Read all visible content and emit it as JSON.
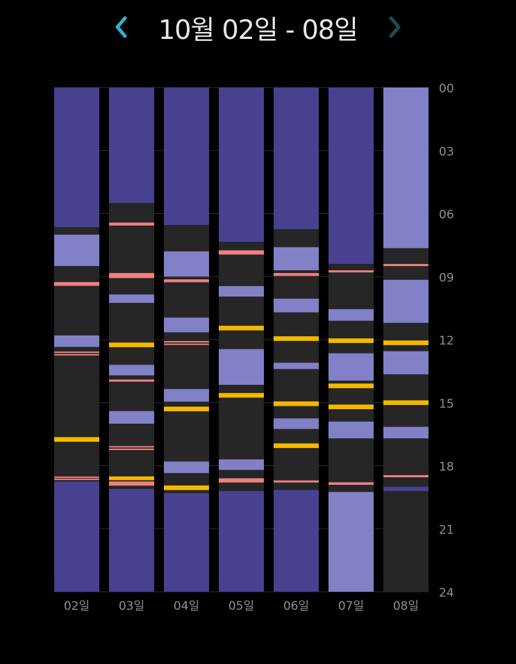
{
  "header": {
    "title": "10월 02일 - 08일",
    "prev_icon": "chevron-left-icon",
    "next_icon": "chevron-right-icon",
    "prev_color": "#2bb3d1",
    "next_color": "#1f4a55"
  },
  "chart_data": {
    "type": "bar",
    "orientation": "vertical-timeline",
    "title": "10월 02일 - 08일",
    "xlabel": "",
    "ylabel": "",
    "ylim": [
      0,
      24
    ],
    "y_ticks": [
      "00",
      "03",
      "06",
      "09",
      "12",
      "15",
      "18",
      "21",
      "24"
    ],
    "categories": [
      "02일",
      "03일",
      "04일",
      "05일",
      "06일",
      "07일",
      "08일"
    ],
    "grid": true,
    "colors": {
      "dark_blue": "#474190",
      "light_blue": "#8280c6",
      "dark_gray": "#262626",
      "pink": "#f08080",
      "yellow": "#f5b800",
      "grid": "#2c2c2c",
      "tick": "#8f8f8f"
    },
    "days": [
      {
        "label": "02일",
        "segments": [
          {
            "start": 0,
            "end": 6.65,
            "type": "dark_blue"
          },
          {
            "start": 6.65,
            "end": 7.0,
            "type": "dark_gray"
          },
          {
            "start": 7.0,
            "end": 8.5,
            "type": "light_blue"
          },
          {
            "start": 8.5,
            "end": 12.35,
            "type": "dark_gray"
          },
          {
            "start": 11.8,
            "end": 12.35,
            "type": "light_blue"
          },
          {
            "start": 12.35,
            "end": 18.75,
            "type": "dark_gray"
          },
          {
            "start": 18.75,
            "end": 24,
            "type": "dark_blue"
          }
        ],
        "marks": [
          {
            "time": 9.35,
            "type": "pink",
            "size": 0.18
          },
          {
            "time": 12.6,
            "type": "pink",
            "size": 0.05
          },
          {
            "time": 12.72,
            "type": "pink",
            "size": 0.05
          },
          {
            "time": 16.75,
            "type": "yellow",
            "size": 0.22
          },
          {
            "time": 18.55,
            "type": "pink",
            "size": 0.05
          },
          {
            "time": 18.65,
            "type": "pink",
            "size": 0.05
          }
        ]
      },
      {
        "label": "03일",
        "segments": [
          {
            "start": 0,
            "end": 5.5,
            "type": "dark_blue"
          },
          {
            "start": 5.5,
            "end": 19.1,
            "type": "dark_gray"
          },
          {
            "start": 9.85,
            "end": 10.25,
            "type": "light_blue"
          },
          {
            "start": 13.2,
            "end": 13.7,
            "type": "light_blue"
          },
          {
            "start": 15.4,
            "end": 16.0,
            "type": "light_blue"
          },
          {
            "start": 19.1,
            "end": 24,
            "type": "dark_blue"
          }
        ],
        "marks": [
          {
            "time": 6.5,
            "type": "pink",
            "size": 0.14
          },
          {
            "time": 8.95,
            "type": "pink",
            "size": 0.24
          },
          {
            "time": 12.25,
            "type": "yellow",
            "size": 0.22
          },
          {
            "time": 13.95,
            "type": "pink",
            "size": 0.1
          },
          {
            "time": 17.1,
            "type": "pink",
            "size": 0.05
          },
          {
            "time": 17.22,
            "type": "pink",
            "size": 0.05
          },
          {
            "time": 18.6,
            "type": "yellow",
            "size": 0.18
          },
          {
            "time": 18.85,
            "type": "pink",
            "size": 0.2
          }
        ]
      },
      {
        "label": "04일",
        "segments": [
          {
            "start": 0,
            "end": 6.55,
            "type": "dark_blue"
          },
          {
            "start": 6.55,
            "end": 19.3,
            "type": "dark_gray"
          },
          {
            "start": 7.8,
            "end": 9.0,
            "type": "light_blue"
          },
          {
            "start": 10.95,
            "end": 11.65,
            "type": "light_blue"
          },
          {
            "start": 14.35,
            "end": 14.95,
            "type": "light_blue"
          },
          {
            "start": 17.8,
            "end": 18.35,
            "type": "light_blue"
          },
          {
            "start": 19.3,
            "end": 24,
            "type": "dark_blue"
          }
        ],
        "marks": [
          {
            "time": 9.2,
            "type": "pink",
            "size": 0.14
          },
          {
            "time": 12.1,
            "type": "pink",
            "size": 0.05
          },
          {
            "time": 12.22,
            "type": "pink",
            "size": 0.05
          },
          {
            "time": 15.3,
            "type": "yellow",
            "size": 0.22
          },
          {
            "time": 19.05,
            "type": "yellow",
            "size": 0.22
          }
        ]
      },
      {
        "label": "05일",
        "segments": [
          {
            "start": 0,
            "end": 7.35,
            "type": "dark_blue"
          },
          {
            "start": 7.35,
            "end": 19.2,
            "type": "dark_gray"
          },
          {
            "start": 9.45,
            "end": 9.95,
            "type": "light_blue"
          },
          {
            "start": 12.45,
            "end": 14.15,
            "type": "light_blue"
          },
          {
            "start": 17.7,
            "end": 18.2,
            "type": "light_blue"
          },
          {
            "start": 19.2,
            "end": 24,
            "type": "dark_blue"
          }
        ],
        "marks": [
          {
            "time": 7.85,
            "type": "pink",
            "size": 0.2
          },
          {
            "time": 11.45,
            "type": "yellow",
            "size": 0.22
          },
          {
            "time": 14.65,
            "type": "yellow",
            "size": 0.22
          },
          {
            "time": 18.7,
            "type": "pink",
            "size": 0.2
          }
        ]
      },
      {
        "label": "06일",
        "segments": [
          {
            "start": 0,
            "end": 6.75,
            "type": "dark_blue"
          },
          {
            "start": 6.75,
            "end": 19.15,
            "type": "dark_gray"
          },
          {
            "start": 7.6,
            "end": 8.7,
            "type": "light_blue"
          },
          {
            "start": 10.05,
            "end": 10.7,
            "type": "light_blue"
          },
          {
            "start": 13.1,
            "end": 13.4,
            "type": "light_blue"
          },
          {
            "start": 15.75,
            "end": 16.25,
            "type": "light_blue"
          },
          {
            "start": 19.15,
            "end": 24,
            "type": "dark_blue"
          }
        ],
        "marks": [
          {
            "time": 8.9,
            "type": "pink",
            "size": 0.14
          },
          {
            "time": 11.95,
            "type": "yellow",
            "size": 0.22
          },
          {
            "time": 15.05,
            "type": "yellow",
            "size": 0.22
          },
          {
            "time": 17.05,
            "type": "yellow",
            "size": 0.22
          },
          {
            "time": 18.75,
            "type": "pink",
            "size": 0.1
          }
        ]
      },
      {
        "label": "07일",
        "segments": [
          {
            "start": 0,
            "end": 8.4,
            "type": "dark_blue"
          },
          {
            "start": 8.4,
            "end": 19.25,
            "type": "dark_gray"
          },
          {
            "start": 10.55,
            "end": 11.1,
            "type": "light_blue"
          },
          {
            "start": 12.65,
            "end": 13.95,
            "type": "light_blue"
          },
          {
            "start": 15.9,
            "end": 16.7,
            "type": "light_blue"
          },
          {
            "start": 19.25,
            "end": 24,
            "type": "light_blue"
          }
        ],
        "marks": [
          {
            "time": 8.75,
            "type": "pink",
            "size": 0.1
          },
          {
            "time": 12.05,
            "type": "yellow",
            "size": 0.22
          },
          {
            "time": 14.2,
            "type": "yellow",
            "size": 0.22
          },
          {
            "time": 15.2,
            "type": "yellow",
            "size": 0.22
          },
          {
            "time": 18.85,
            "type": "pink",
            "size": 0.12
          }
        ]
      },
      {
        "label": "08일",
        "segments": [
          {
            "start": 0,
            "end": 7.65,
            "type": "light_blue"
          },
          {
            "start": 7.65,
            "end": 24,
            "type": "dark_gray"
          },
          {
            "start": 9.15,
            "end": 11.2,
            "type": "light_blue"
          },
          {
            "start": 12.55,
            "end": 13.65,
            "type": "light_blue"
          },
          {
            "start": 16.15,
            "end": 16.7,
            "type": "light_blue"
          },
          {
            "start": 19.0,
            "end": 19.2,
            "type": "dark_blue"
          }
        ],
        "marks": [
          {
            "time": 8.45,
            "type": "pink",
            "size": 0.1
          },
          {
            "time": 12.15,
            "type": "yellow",
            "size": 0.22
          },
          {
            "time": 15.0,
            "type": "yellow",
            "size": 0.22
          },
          {
            "time": 18.5,
            "type": "pink",
            "size": 0.1
          }
        ]
      }
    ]
  }
}
